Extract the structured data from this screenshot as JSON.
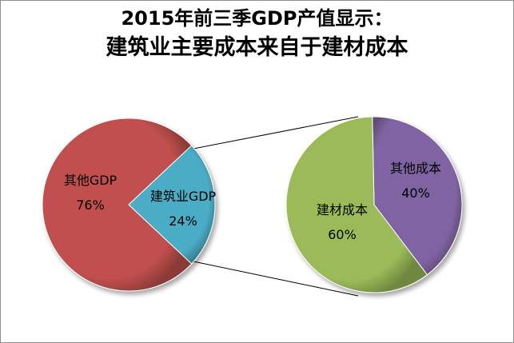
{
  "chart_data": [
    {
      "type": "pie",
      "title": "2015年前三季GDP产值显示：",
      "subtitle": "建筑业主要成本来自于建材成本",
      "slices": [
        {
          "label": "其他GDP",
          "value": 76,
          "value_label": "76%",
          "color": "#c0504d"
        },
        {
          "label": "建筑业GDP",
          "value": 24,
          "value_label": "24%",
          "color": "#4bacc6"
        }
      ]
    },
    {
      "type": "pie",
      "slices": [
        {
          "label": "建材成本",
          "value": 60,
          "value_label": "60%",
          "color": "#9bbb59"
        },
        {
          "label": "其他成本",
          "value": 40,
          "value_label": "40%",
          "color": "#8064a2"
        }
      ]
    }
  ]
}
